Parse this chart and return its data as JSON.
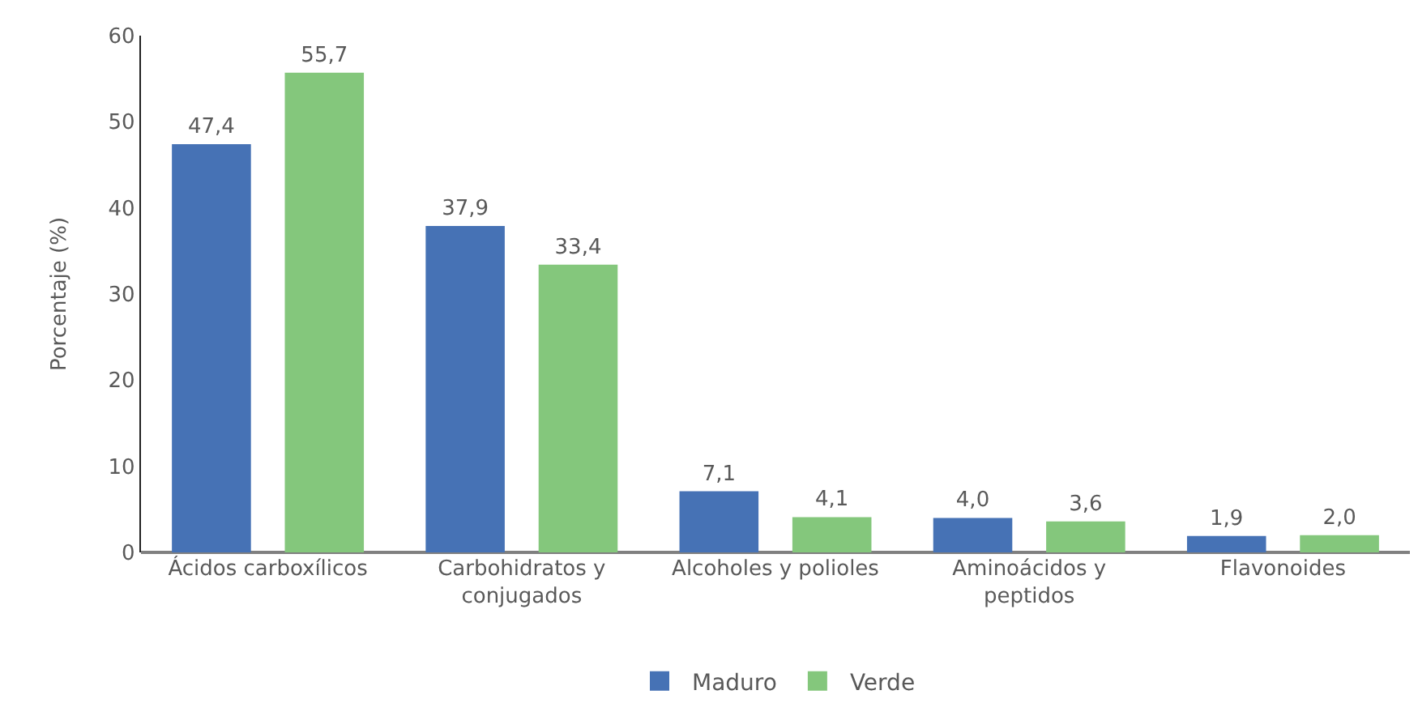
{
  "chart_data": {
    "type": "bar",
    "ylabel": "Porcentaje (%)",
    "categories": [
      "Ácidos carboxílicos",
      "Carbohidratos y conjugados",
      "Alcoholes y polioles",
      "Aminoácidos y peptidos",
      "Flavonoides"
    ],
    "series": [
      {
        "name": "Maduro",
        "color": "#4672b5",
        "values": [
          47.4,
          37.9,
          7.1,
          4.0,
          1.9
        ],
        "value_labels": [
          "47,4",
          "37,9",
          "7,1",
          "4,0",
          "1,9"
        ]
      },
      {
        "name": "Verde",
        "color": "#84c77c",
        "values": [
          55.7,
          33.4,
          4.1,
          3.6,
          2.0
        ],
        "value_labels": [
          "55,7",
          "33,4",
          "4,1",
          "3,6",
          "2,0"
        ]
      }
    ],
    "ylim": [
      0,
      60
    ],
    "yticks": [
      0,
      10,
      20,
      30,
      40,
      50,
      60
    ],
    "legend": "bottom"
  }
}
